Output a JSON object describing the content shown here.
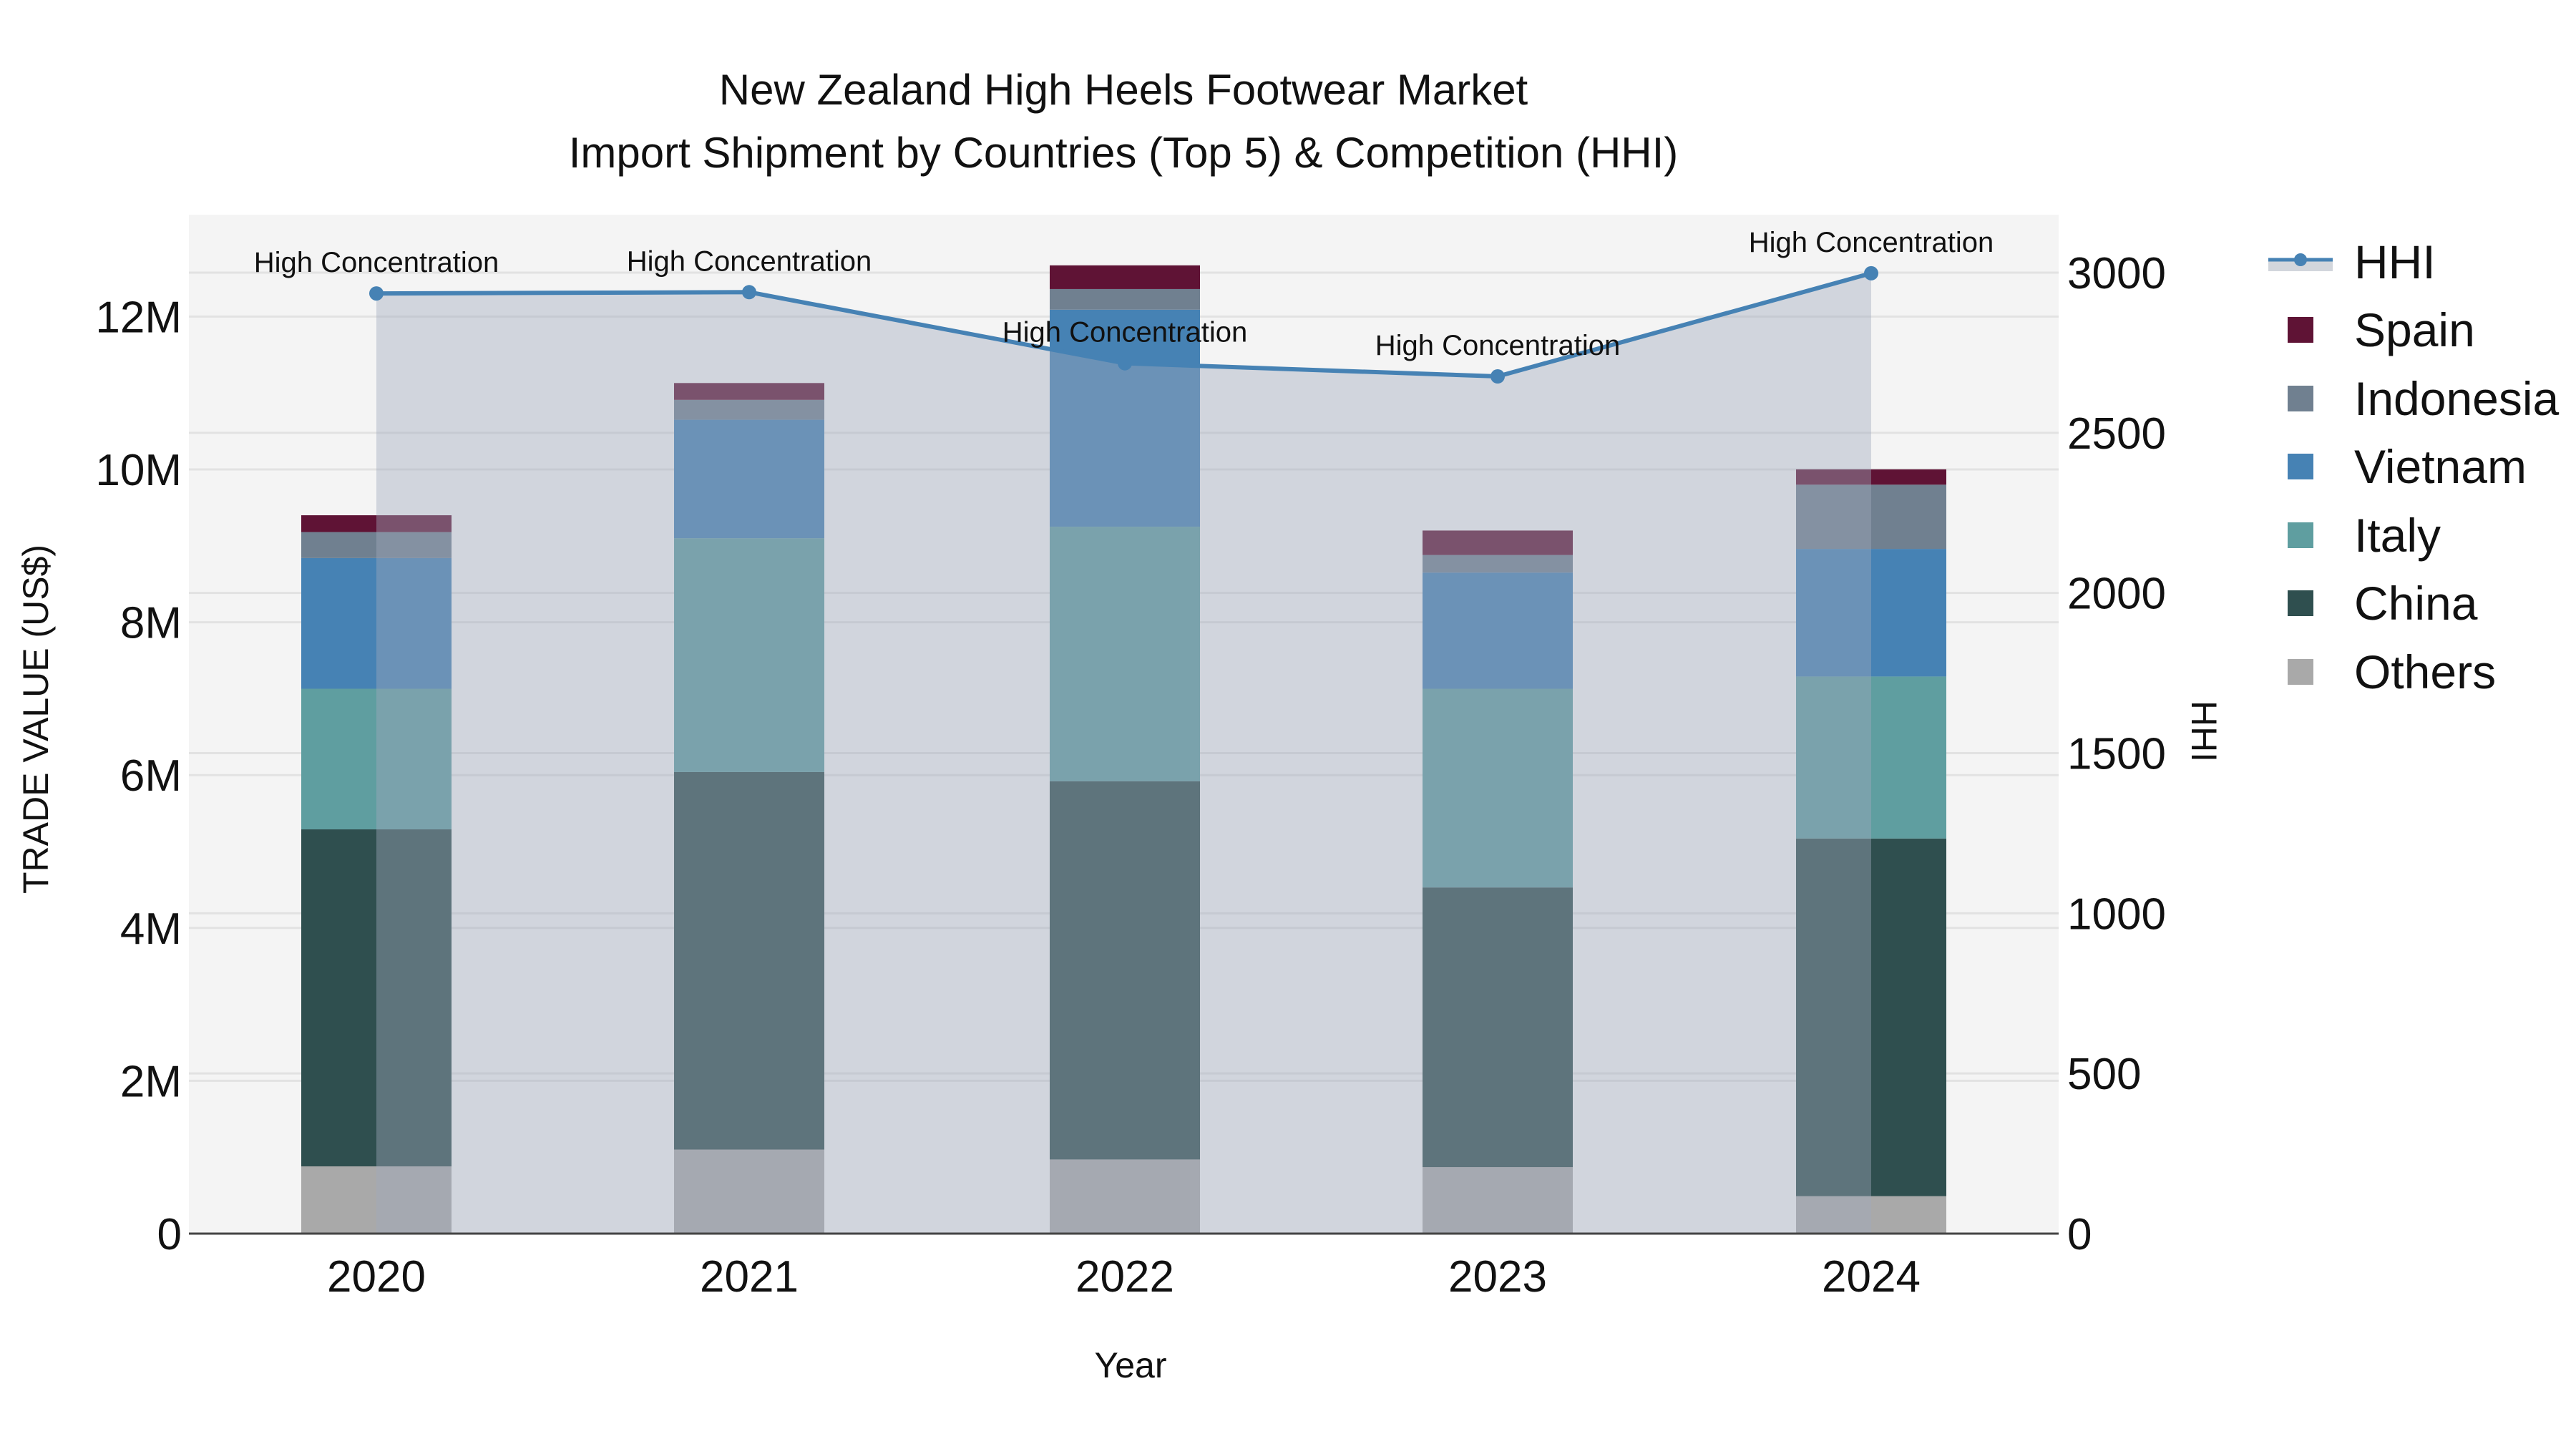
{
  "title": {
    "line1": "New Zealand High Heels Footwear Market",
    "line2": "Import Shipment by Countries (Top 5) & Competition (HHI)"
  },
  "axes": {
    "x_title": "Year",
    "y_left_title": "TRADE VALUE (US$)",
    "y_right_title": "HHI",
    "y_left_ticks": [
      "0",
      "2M",
      "4M",
      "6M",
      "8M",
      "10M",
      "12M"
    ],
    "y_right_ticks": [
      "0",
      "500",
      "1000",
      "1500",
      "2000",
      "2500",
      "3000"
    ]
  },
  "legend": [
    {
      "name": "HHI",
      "type": "line",
      "color": "#4682b4"
    },
    {
      "name": "Spain",
      "type": "bar",
      "color": "#5f1335"
    },
    {
      "name": "Indonesia",
      "type": "bar",
      "color": "#708090"
    },
    {
      "name": "Vietnam",
      "type": "bar",
      "color": "#4682b4"
    },
    {
      "name": "Italy",
      "type": "bar",
      "color": "#5f9ea0"
    },
    {
      "name": "China",
      "type": "bar",
      "color": "#2f4f4f"
    },
    {
      "name": "Others",
      "type": "bar",
      "color": "#a9a9a9"
    }
  ],
  "annotation_label": "High Concentration",
  "chart_data": {
    "type": "bar",
    "stacked": true,
    "title": "New Zealand High Heels Footwear Market — Import Shipment by Countries (Top 5) & Competition (HHI)",
    "xlabel": "Year",
    "ylabel": "TRADE VALUE (US$)",
    "y2label": "HHI",
    "categories": [
      "2020",
      "2021",
      "2022",
      "2023",
      "2024"
    ],
    "ylim": [
      0,
      13330000
    ],
    "y2lim": [
      0,
      3180
    ],
    "grid": true,
    "legend_position": "right",
    "series": [
      {
        "name": "Others",
        "color": "#a9a9a9",
        "values": [
          880000,
          1100000,
          970000,
          870000,
          490000
        ]
      },
      {
        "name": "China",
        "color": "#2f4f4f",
        "values": [
          4410000,
          4940000,
          4950000,
          3660000,
          4680000
        ]
      },
      {
        "name": "Italy",
        "color": "#5f9ea0",
        "values": [
          1840000,
          3060000,
          3330000,
          2600000,
          2120000
        ]
      },
      {
        "name": "Vietnam",
        "color": "#4682b4",
        "values": [
          1710000,
          1550000,
          2840000,
          1520000,
          1670000
        ]
      },
      {
        "name": "Indonesia",
        "color": "#708090",
        "values": [
          340000,
          260000,
          270000,
          230000,
          840000
        ]
      },
      {
        "name": "Spain",
        "color": "#5f1335",
        "values": [
          220000,
          220000,
          310000,
          320000,
          200000
        ]
      }
    ],
    "line_series": {
      "name": "HHI",
      "axis": "right",
      "color": "#4682b4",
      "fill": "tozeroy",
      "values": [
        2935,
        2939,
        2717,
        2676,
        2998
      ],
      "annotations": [
        "High Concentration",
        "High Concentration",
        "High Concentration",
        "High Concentration",
        "High Concentration"
      ]
    }
  }
}
